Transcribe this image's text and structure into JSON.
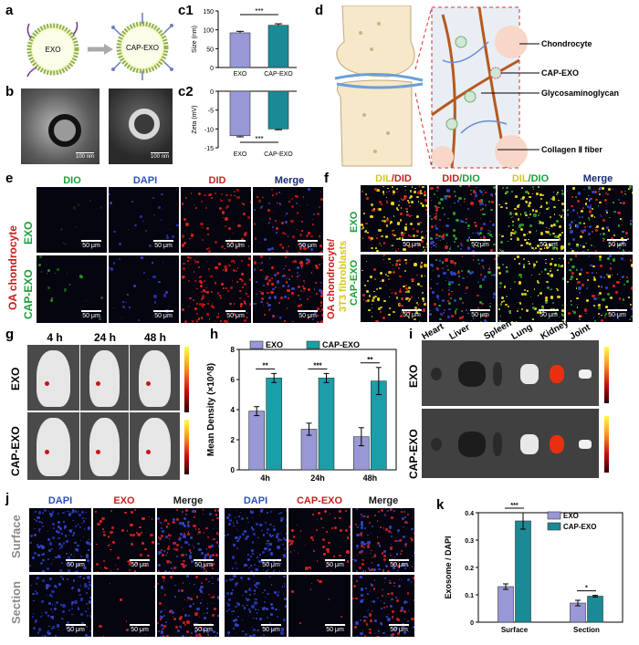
{
  "panels": {
    "a": "a",
    "b": "b",
    "c1": "c1",
    "c2": "c2",
    "d": "d",
    "e": "e",
    "f": "f",
    "g": "g",
    "h": "h",
    "i": "i",
    "j": "j",
    "k": "k"
  },
  "panel_a": {
    "left": "EXO",
    "right": "CAP-EXO"
  },
  "panel_b": {
    "scale1": "100 nm",
    "scale2": "100 nm"
  },
  "panel_d": {
    "labels": [
      "Chondrocyte",
      "CAP-EXO",
      "Glycosaminoglycan",
      "Collagen Ⅱ fiber"
    ]
  },
  "panel_e": {
    "headers": [
      "DIO",
      "DAPI",
      "DID",
      "Merge"
    ],
    "row1": "EXO",
    "row2": "CAP-EXO",
    "side": "OA chondrocyte",
    "scale": "50 μm"
  },
  "panel_f": {
    "headers": [
      [
        "DIL",
        "/DID"
      ],
      [
        "DID",
        "/DIO"
      ],
      [
        "DIL",
        "/DIO"
      ],
      [
        "Merge"
      ]
    ],
    "row1": "EXO",
    "row2": "CAP-EXO",
    "side_a": "OA chondrocyte/",
    "side_b": "3T3 fibroblasts",
    "scale": "50 μm"
  },
  "panel_g": {
    "times": [
      "4 h",
      "24 h",
      "48 h"
    ],
    "row1": "EXO",
    "row2": "CAP-EXO"
  },
  "panel_i": {
    "organs": [
      "Heart",
      "Liver",
      "Spleen",
      "Lung",
      "Kidney",
      "Joint"
    ],
    "row1": "EXO",
    "row2": "CAP-EXO"
  },
  "panel_j": {
    "headers": [
      "DAPI",
      "EXO",
      "Merge",
      "DAPI",
      "CAP-EXO",
      "Merge"
    ],
    "row1": "Surface",
    "row2": "Section",
    "scale": "50 μm"
  },
  "chart_data": [
    {
      "id": "c1",
      "type": "bar",
      "categories": [
        "EXO",
        "CAP-EXO"
      ],
      "values": [
        92,
        112
      ],
      "errors": [
        4,
        4
      ],
      "ylabel": "Size (nm)",
      "ylim": [
        0,
        150
      ],
      "yticks": [
        0,
        50,
        100,
        150
      ],
      "significance": "***",
      "colors": [
        "#9898d6",
        "#1a8a96"
      ]
    },
    {
      "id": "c2",
      "type": "bar",
      "categories": [
        "EXO",
        "CAP-EXO"
      ],
      "values": [
        -11.8,
        -10.0
      ],
      "errors": [
        0.3,
        0.2
      ],
      "ylabel": "Zeta (mV)",
      "ylim": [
        -15,
        0
      ],
      "yticks": [
        -15,
        -10,
        -5,
        0
      ],
      "significance": "***",
      "colors": [
        "#9898d6",
        "#1a8a96"
      ]
    },
    {
      "id": "h",
      "type": "bar",
      "categories": [
        "4h",
        "24h",
        "48h"
      ],
      "series": [
        {
          "name": "EXO",
          "values": [
            3.9,
            2.7,
            2.2
          ],
          "errors": [
            0.3,
            0.4,
            0.6
          ]
        },
        {
          "name": "CAP-EXO",
          "values": [
            6.1,
            6.1,
            5.9
          ],
          "errors": [
            0.3,
            0.3,
            0.9
          ]
        }
      ],
      "ylabel": "Mean Density (×10^8)",
      "ylim": [
        0,
        8
      ],
      "yticks": [
        0,
        2,
        4,
        6,
        8
      ],
      "significance": [
        "**",
        "***",
        "**"
      ],
      "colors": [
        "#9898d6",
        "#1a9fa8"
      ],
      "legend": "top"
    },
    {
      "id": "k",
      "type": "bar",
      "categories": [
        "Surface",
        "Section"
      ],
      "series": [
        {
          "name": "EXO",
          "values": [
            0.13,
            0.07
          ],
          "errors": [
            0.01,
            0.01
          ]
        },
        {
          "name": "CAP-EXO",
          "values": [
            0.37,
            0.095
          ],
          "errors": [
            0.03,
            0.003
          ]
        }
      ],
      "ylabel": "Exosome / DAPI",
      "ylim": [
        0,
        0.4
      ],
      "yticks": [
        0.0,
        0.1,
        0.2,
        0.3,
        0.4
      ],
      "significance": [
        "***",
        "*"
      ],
      "colors": [
        "#9898d6",
        "#1a8a96"
      ],
      "legend": "top-right"
    }
  ]
}
